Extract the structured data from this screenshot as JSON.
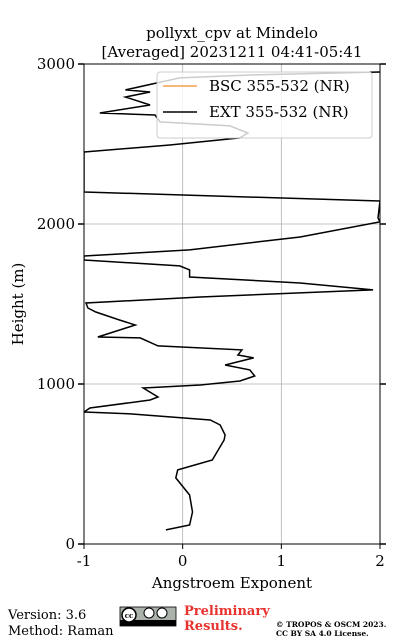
{
  "chart_data": {
    "type": "line",
    "title": "pollyxt_cpv at Mindelo",
    "subtitle": "[Averaged] 20231211 04:41-05:41",
    "x_label": "Angstroem Exponent",
    "y_label": "Height (m)",
    "xlim": [
      -1,
      2
    ],
    "xticks": [
      -1,
      0,
      1,
      2
    ],
    "ylim": [
      0,
      3000
    ],
    "yticks": [
      0,
      1000,
      2000,
      3000
    ],
    "grid": true,
    "legend": "upper right",
    "series": [
      {
        "name": "BSC 355-532 (NR)",
        "color": "#f0a050",
        "y": [],
        "values": []
      },
      {
        "name": "EXT 355-532 (NR)",
        "color": "#000000",
        "y": [
          88,
          119,
          200,
          306,
          413,
          463,
          525,
          650,
          681,
          744,
          775,
          813,
          825,
          850,
          900,
          919,
          975,
          994,
          1019,
          1050,
          1088,
          1119,
          1163,
          1181,
          1213,
          1238,
          1288,
          1294,
          1369,
          1400,
          1450,
          1475,
          1506,
          1544,
          1588,
          1631,
          1669,
          1713,
          1738,
          1775,
          1800,
          1838,
          1888,
          1919,
          2013,
          2038,
          2144,
          2200,
          2450,
          2494,
          2538,
          2569,
          2613,
          2638,
          2681,
          2694,
          2744,
          2794,
          2825,
          2838,
          2913,
          2931,
          2950
        ],
        "values": [
          -0.17,
          0.07,
          0.1,
          0.07,
          -0.07,
          -0.05,
          0.3,
          0.42,
          0.43,
          0.38,
          0.28,
          -0.53,
          -1.0,
          -0.94,
          -0.33,
          -0.25,
          -0.4,
          0.18,
          0.58,
          0.73,
          0.68,
          0.43,
          0.72,
          0.56,
          0.6,
          -0.25,
          -0.43,
          -0.86,
          -0.48,
          -0.64,
          -0.88,
          -0.96,
          -0.98,
          0.18,
          1.93,
          1.19,
          0.07,
          0.07,
          -0.03,
          -1.0,
          -1.0,
          0.07,
          0.76,
          1.19,
          2.0,
          1.98,
          2.0,
          -1.0,
          -1.0,
          -0.13,
          0.58,
          0.66,
          0.48,
          -0.23,
          -0.28,
          -0.84,
          -0.33,
          -0.58,
          -0.33,
          -0.58,
          -0.03,
          0.68,
          2.0
        ]
      }
    ]
  },
  "footer": {
    "version": "Version: 3.6",
    "method": "Method: Raman",
    "preliminary": [
      "Preliminary",
      "Results."
    ],
    "copyright": [
      "© TROPOS & OSCM 2023.",
      "CC BY SA 4.0 License."
    ]
  }
}
